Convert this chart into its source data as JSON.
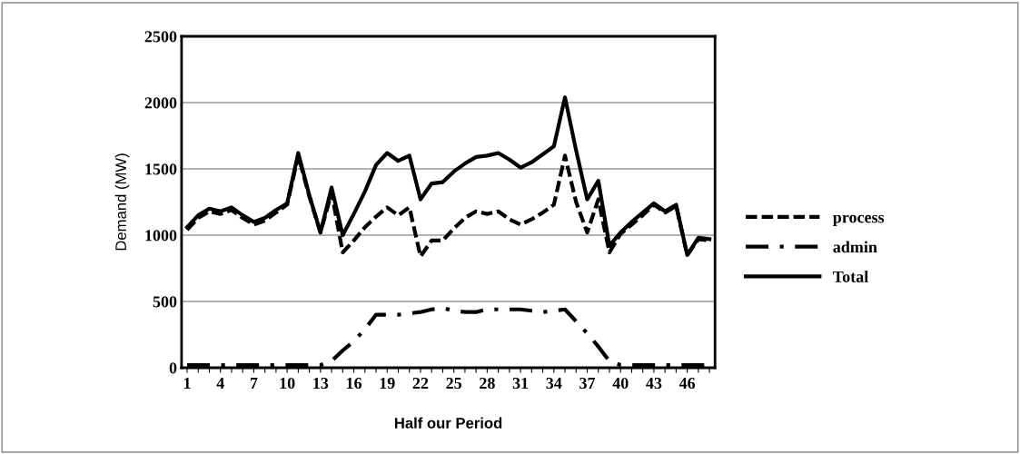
{
  "chart_data": {
    "type": "line",
    "xlabel": "Half our Period",
    "ylabel": "Demand (MW)",
    "categories": [
      "1",
      null,
      null,
      "4",
      null,
      null,
      "7",
      null,
      null,
      "10",
      null,
      null,
      "13",
      null,
      null,
      "16",
      null,
      null,
      "19",
      null,
      null,
      "22",
      null,
      null,
      "25",
      null,
      null,
      "28",
      null,
      null,
      "31",
      null,
      null,
      "34",
      null,
      null,
      "37",
      null,
      null,
      "40",
      null,
      null,
      "43",
      null,
      null,
      "46",
      null,
      null
    ],
    "series": [
      {
        "name": "process",
        "color": "#000000",
        "line_style": "dashed",
        "values": [
          1040,
          1130,
          1180,
          1160,
          1190,
          1130,
          1080,
          1110,
          1170,
          1230,
          1600,
          1290,
          1020,
          1320,
          870,
          960,
          1060,
          1140,
          1210,
          1150,
          1210,
          840,
          960,
          960,
          1050,
          1130,
          1180,
          1160,
          1180,
          1120,
          1080,
          1120,
          1170,
          1230,
          1600,
          1250,
          1020,
          1270,
          870,
          1010,
          1080,
          1150,
          1230,
          1170,
          1220,
          850,
          970,
          960
        ]
      },
      {
        "name": "admin",
        "color": "#000000",
        "line_style": "dashdot",
        "values": [
          20,
          20,
          20,
          20,
          20,
          20,
          20,
          20,
          20,
          20,
          20,
          20,
          20,
          50,
          130,
          200,
          290,
          400,
          400,
          400,
          410,
          420,
          440,
          450,
          430,
          420,
          420,
          440,
          440,
          440,
          440,
          430,
          420,
          430,
          440,
          350,
          260,
          160,
          50,
          20,
          20,
          20,
          20,
          20,
          20,
          20,
          20,
          20
        ]
      },
      {
        "name": "Total",
        "color": "#000000",
        "line_style": "solid",
        "values": [
          1060,
          1150,
          1200,
          1180,
          1210,
          1150,
          1100,
          1130,
          1190,
          1240,
          1620,
          1300,
          1020,
          1360,
          1000,
          1160,
          1330,
          1530,
          1620,
          1560,
          1600,
          1270,
          1390,
          1400,
          1480,
          1540,
          1590,
          1600,
          1620,
          1570,
          1510,
          1550,
          1610,
          1670,
          2040,
          1640,
          1270,
          1410,
          920,
          1020,
          1100,
          1170,
          1240,
          1180,
          1230,
          850,
          980,
          970
        ]
      }
    ],
    "ylim": [
      0,
      2500
    ],
    "yticks": [
      0,
      500,
      1000,
      1500,
      2000,
      2500
    ],
    "grid": "y",
    "legend": "right",
    "marker": "none"
  }
}
